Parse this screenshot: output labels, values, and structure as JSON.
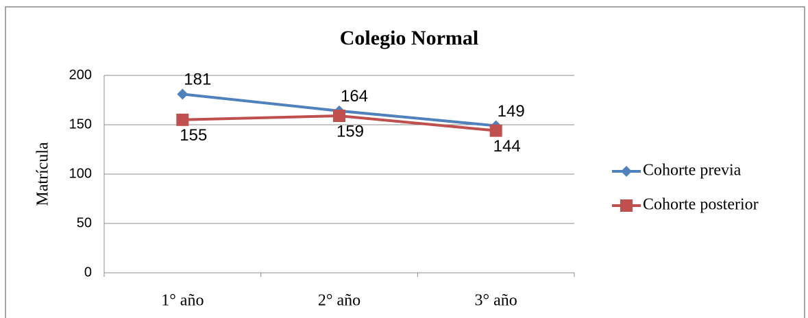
{
  "chart_data": {
    "type": "line",
    "title": "Colegio Normal",
    "y_label": "Matrícula",
    "categories": [
      "1° año",
      "2° año",
      "3° año"
    ],
    "series": [
      {
        "name": "Cohorte previa",
        "color": "#4f81bd",
        "marker": "diamond",
        "values": [
          181,
          164,
          149
        ]
      },
      {
        "name": "Cohorte posterior",
        "color": "#c0504d",
        "marker": "square",
        "values": [
          155,
          159,
          144
        ]
      }
    ],
    "ylim": [
      0,
      200
    ],
    "yticks": [
      0,
      50,
      100,
      150,
      200
    ],
    "grid": true,
    "legend": "right"
  }
}
